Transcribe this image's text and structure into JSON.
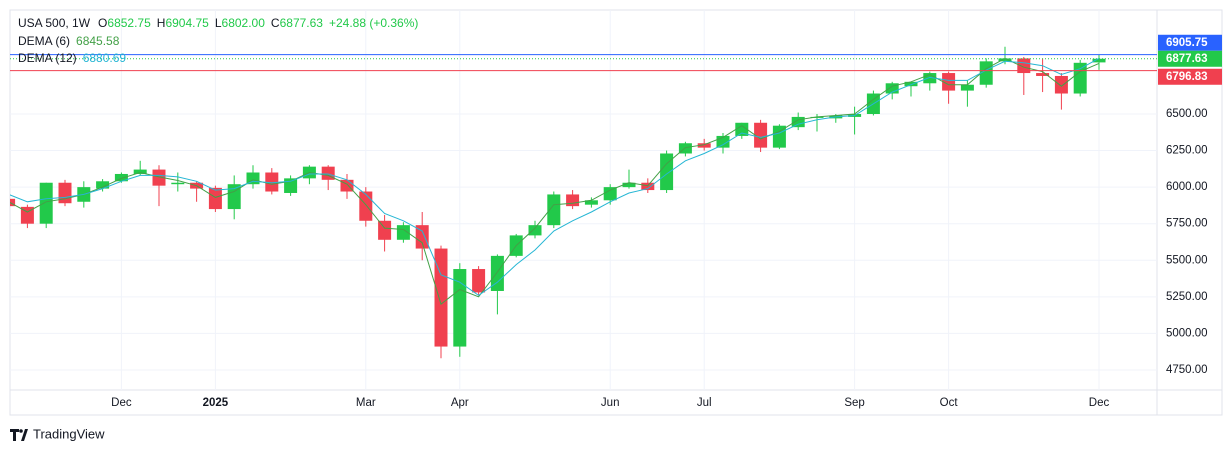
{
  "header": {
    "symbol": "USA 500, 1W",
    "items": [
      {
        "key": "O",
        "value": "6852.75"
      },
      {
        "key": "H",
        "value": "6904.75"
      },
      {
        "key": "L",
        "value": "6802.00"
      },
      {
        "key": "C",
        "value": "6877.63"
      }
    ],
    "change": "+24.88 (+0.36%)"
  },
  "chart_data": {
    "type": "candlestick",
    "categories": [
      null,
      null,
      null,
      null,
      null,
      null,
      "Dec",
      null,
      null,
      null,
      null,
      "2025",
      null,
      null,
      null,
      null,
      null,
      null,
      null,
      "Mar",
      null,
      null,
      null,
      null,
      "Apr",
      null,
      null,
      null,
      null,
      null,
      null,
      null,
      "Jun",
      null,
      null,
      null,
      null,
      "Jul",
      null,
      null,
      null,
      null,
      null,
      null,
      null,
      "Sep",
      null,
      null,
      null,
      null,
      "Oct",
      null,
      null,
      null,
      null,
      null,
      null,
      null,
      "Dec"
    ],
    "open": [
      5920,
      5865,
      5750,
      6030,
      5900,
      5990,
      6040,
      6090,
      6120,
      6020,
      6030,
      5995,
      5850,
      6020,
      6100,
      5960,
      6060,
      6140,
      6050,
      5970,
      5770,
      5640,
      5740,
      5580,
      4910,
      5440,
      5290,
      5530,
      5670,
      5740,
      5950,
      5880,
      5910,
      6000,
      6030,
      5980,
      6230,
      6300,
      6270,
      6350,
      6440,
      6270,
      6410,
      6475,
      6470,
      6480,
      6500,
      6640,
      6690,
      6710,
      6780,
      6660,
      6700,
      6860,
      6880,
      6780,
      6760,
      6640,
      6852.75
    ],
    "high": [
      5935,
      5880,
      6030,
      6050,
      6040,
      6055,
      6100,
      6180,
      6150,
      6100,
      6040,
      6010,
      6080,
      6150,
      6130,
      6080,
      6150,
      6150,
      6090,
      6000,
      5810,
      5760,
      5830,
      5600,
      5480,
      5460,
      5540,
      5680,
      5770,
      5970,
      5980,
      5930,
      6020,
      6120,
      6060,
      6250,
      6310,
      6330,
      6370,
      6440,
      6460,
      6430,
      6510,
      6500,
      6500,
      6550,
      6660,
      6720,
      6720,
      6790,
      6790,
      6730,
      6880,
      6960,
      6890,
      6880,
      6780,
      6870,
      6904.75
    ],
    "low": [
      5860,
      5720,
      5720,
      5870,
      5860,
      5970,
      6030,
      6080,
      5870,
      5970,
      5900,
      5830,
      5780,
      5990,
      5950,
      5940,
      6020,
      5980,
      5920,
      5730,
      5560,
      5620,
      5500,
      4830,
      4840,
      5260,
      5130,
      5520,
      5650,
      5720,
      5850,
      5860,
      5880,
      5990,
      5960,
      5960,
      6210,
      6250,
      6230,
      6330,
      6240,
      6260,
      6390,
      6380,
      6440,
      6360,
      6490,
      6600,
      6620,
      6660,
      6570,
      6550,
      6680,
      6840,
      6630,
      6650,
      6530,
      6620,
      6802.0
    ],
    "close": [
      5870,
      5750,
      6030,
      5890,
      6000,
      6040,
      6090,
      6120,
      6010,
      6030,
      5990,
      5850,
      6020,
      6100,
      5970,
      6060,
      6140,
      6050,
      5970,
      5770,
      5640,
      5740,
      5580,
      4910,
      5440,
      5280,
      5530,
      5670,
      5740,
      5950,
      5870,
      5910,
      6000,
      6030,
      5980,
      6230,
      6300,
      6270,
      6350,
      6440,
      6270,
      6420,
      6480,
      6480,
      6490,
      6500,
      6640,
      6710,
      6720,
      6780,
      6660,
      6700,
      6860,
      6880,
      6780,
      6760,
      6640,
      6850,
      6877.63
    ],
    "up_color": "#22c94a",
    "down_color": "#f0404f",
    "indicators": [
      {
        "name": "DEMA (6)",
        "color": "#43a047",
        "values": [
          5900,
          5830,
          5900,
          5920,
          5950,
          6000,
          6060,
          6100,
          6070,
          6045,
          6010,
          5930,
          5970,
          6050,
          6020,
          6040,
          6100,
          6080,
          6020,
          5880,
          5720,
          5710,
          5620,
          5200,
          5300,
          5250,
          5420,
          5600,
          5720,
          5880,
          5890,
          5910,
          5980,
          6030,
          6010,
          6160,
          6270,
          6290,
          6340,
          6420,
          6330,
          6380,
          6460,
          6480,
          6490,
          6500,
          6600,
          6690,
          6720,
          6770,
          6700,
          6700,
          6810,
          6880,
          6820,
          6790,
          6690,
          6790,
          6845.58
        ]
      },
      {
        "name": "DEMA (12)",
        "color": "#26b6d4",
        "values": [
          5950,
          5900,
          5920,
          5930,
          5950,
          5990,
          6040,
          6080,
          6080,
          6070,
          6040,
          5980,
          5990,
          6040,
          6030,
          6040,
          6090,
          6090,
          6050,
          5950,
          5820,
          5770,
          5700,
          5400,
          5350,
          5260,
          5350,
          5470,
          5570,
          5700,
          5770,
          5830,
          5900,
          5960,
          5990,
          6090,
          6180,
          6230,
          6290,
          6370,
          6340,
          6370,
          6430,
          6460,
          6480,
          6490,
          6570,
          6650,
          6700,
          6750,
          6730,
          6730,
          6800,
          6860,
          6850,
          6830,
          6770,
          6810,
          6880.69
        ]
      }
    ],
    "price_lines": [
      {
        "value": 6905.75,
        "color": "#2962ff"
      },
      {
        "value": 6877.63,
        "color": "#22c94a"
      },
      {
        "value": 6796.83,
        "color": "#f0404f"
      }
    ],
    "ylim": [
      4613,
      7211
    ],
    "yticks": [
      {
        "value": 4750,
        "label": "4750.00"
      },
      {
        "value": 5000,
        "label": "5000.00"
      },
      {
        "value": 5250,
        "label": "5250.00"
      },
      {
        "value": 5500,
        "label": "5500.00"
      },
      {
        "value": 5750,
        "label": "5750.00"
      },
      {
        "value": 6000,
        "label": "6000.00"
      },
      {
        "value": 6250,
        "label": "6250.00"
      },
      {
        "value": 6500,
        "label": "6500.00"
      }
    ],
    "grid": true
  },
  "footer": {
    "brand": "TradingView"
  }
}
